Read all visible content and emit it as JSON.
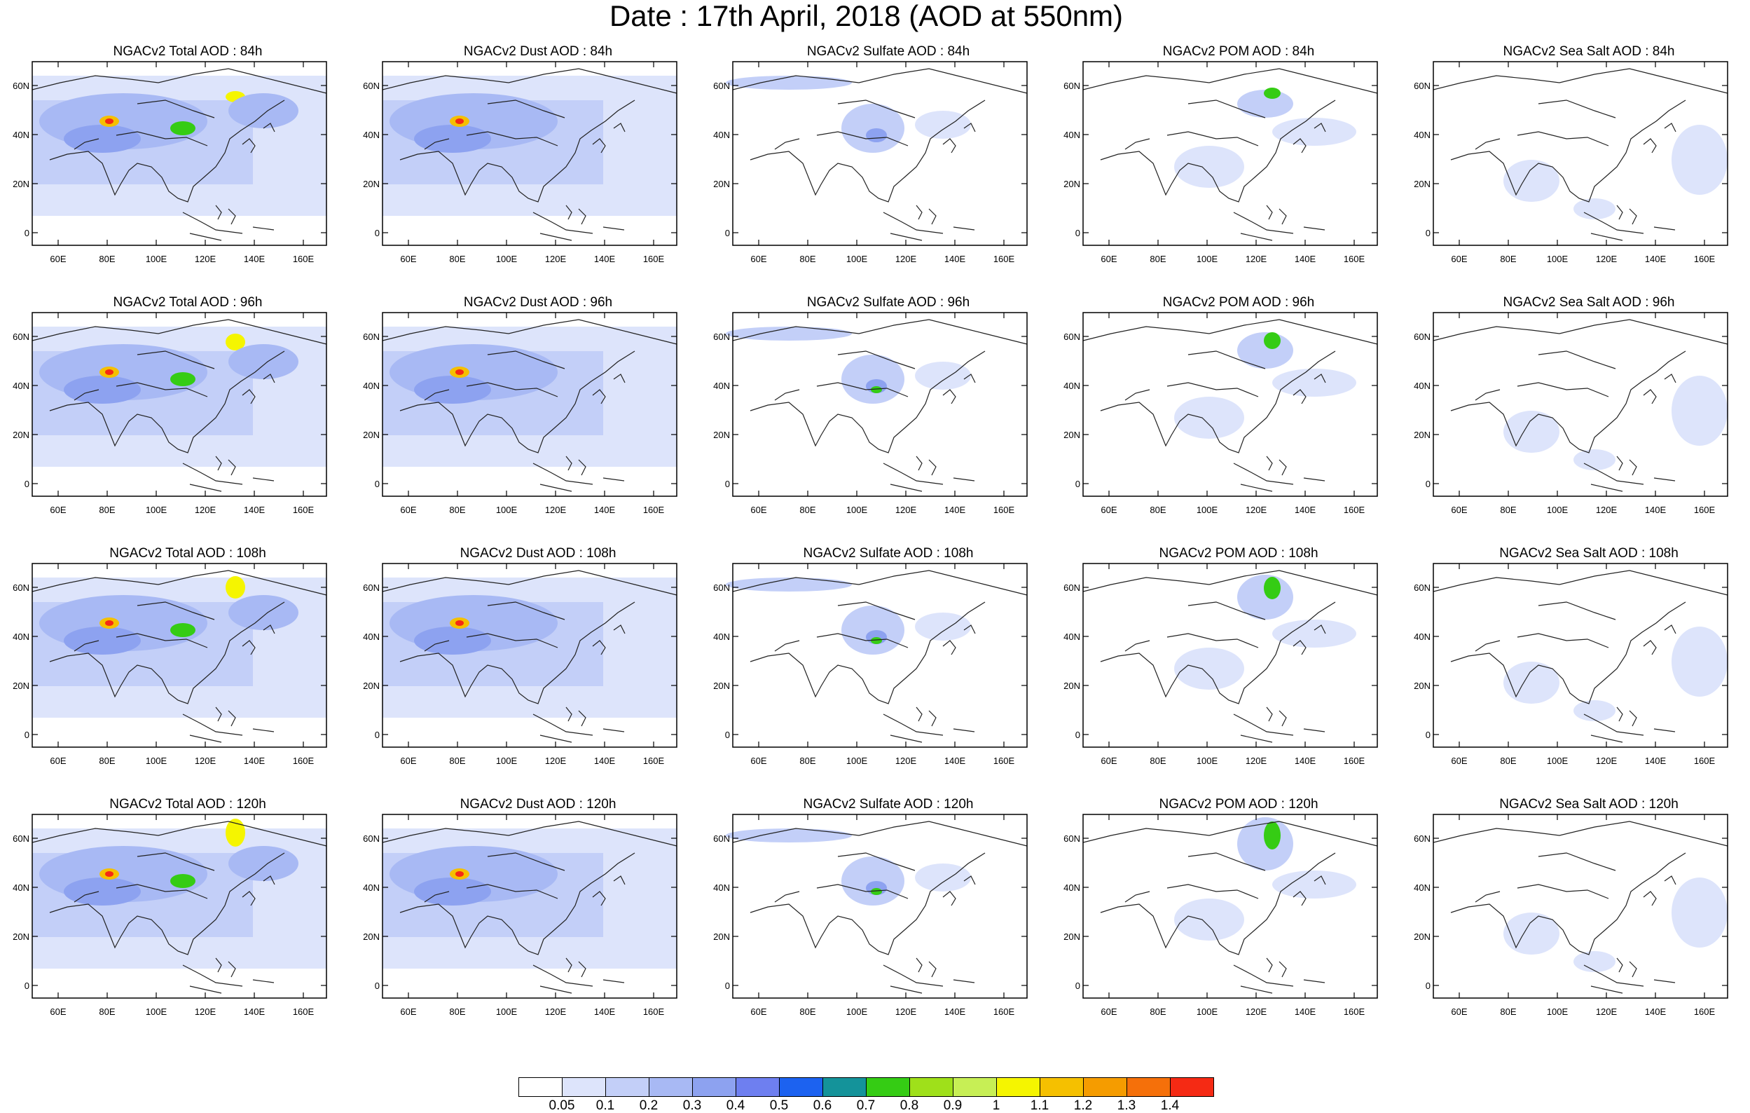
{
  "title": "Date : 17th April, 2018 (AOD at 550nm)",
  "lat_ticks": [
    "60N",
    "40N",
    "20N",
    "0"
  ],
  "lon_ticks": [
    "60E",
    "80E",
    "100E",
    "120E",
    "140E",
    "160E"
  ],
  "panel_titles": [
    [
      "NGACv2 Total AOD : 84h",
      "NGACv2 Dust AOD : 84h",
      "NGACv2 Sulfate AOD : 84h",
      "NGACv2 POM AOD : 84h",
      "NGACv2 Sea Salt AOD : 84h"
    ],
    [
      "NGACv2 Total AOD : 96h",
      "NGACv2 Dust AOD : 96h",
      "NGACv2 Sulfate AOD : 96h",
      "NGACv2 POM AOD : 96h",
      "NGACv2 Sea Salt AOD : 96h"
    ],
    [
      "NGACv2 Total AOD : 108h",
      "NGACv2 Dust AOD : 108h",
      "NGACv2 Sulfate AOD : 108h",
      "NGACv2 POM AOD : 108h",
      "NGACv2 Sea Salt AOD : 108h"
    ],
    [
      "NGACv2 Total AOD : 120h",
      "NGACv2 Dust AOD : 120h",
      "NGACv2 Sulfate AOD : 120h",
      "NGACv2 POM AOD : 120h",
      "NGACv2 Sea Salt  AOD : 120h"
    ]
  ],
  "legend": {
    "labels": [
      "0.05",
      "0.1",
      "0.2",
      "0.3",
      "0.4",
      "0.5",
      "0.6",
      "0.7",
      "0.8",
      "0.9",
      "1",
      "1.1",
      "1.2",
      "1.3",
      "1.4"
    ],
    "colors": [
      "#ffffff",
      "#dde4fb",
      "#c3cff8",
      "#a8b9f4",
      "#8da2f0",
      "#6e7ff0",
      "#1c62f0",
      "#14939a",
      "#35cc14",
      "#9fe01a",
      "#c7ef55",
      "#f5f500",
      "#f5c000",
      "#f59c00",
      "#f5700a",
      "#f52a14"
    ]
  }
}
